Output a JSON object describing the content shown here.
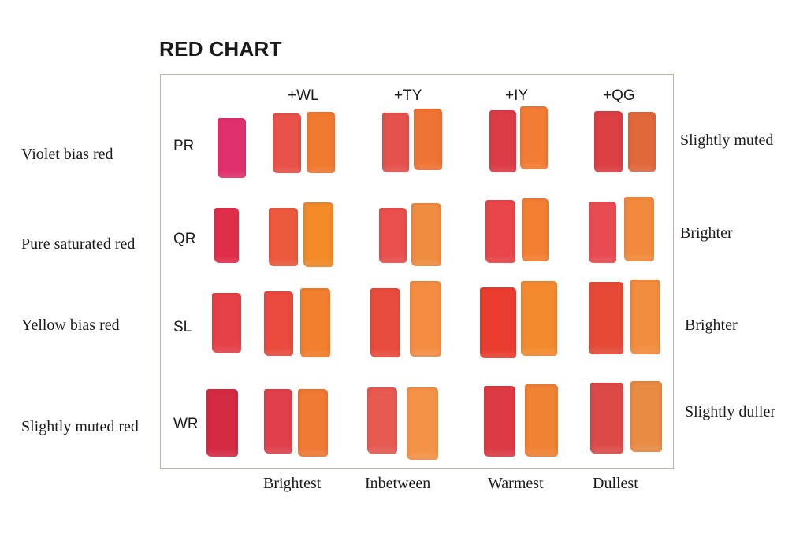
{
  "title": "RED CHART",
  "column_headers": [
    "+WL",
    "+TY",
    "+IY",
    "+QG"
  ],
  "bottom_labels": [
    "Brightest",
    "Inbetween",
    "Warmest",
    "Dullest"
  ],
  "rows": [
    {
      "description": "Violet bias red",
      "code": "PR",
      "note": "Slightly muted",
      "base_color": "#e0306e",
      "mixes": [
        [
          "#e8524a",
          "#f07a30"
        ],
        [
          "#e5524e",
          "#ee7435"
        ],
        [
          "#dc3c46",
          "#f27c34"
        ],
        [
          "#dc3f44",
          "#e0683a"
        ]
      ]
    },
    {
      "description": "Pure saturated red",
      "code": "QR",
      "note": "Brighter",
      "base_color": "#e02e4a",
      "mixes": [
        [
          "#ec5a3e",
          "#f28b28"
        ],
        [
          "#e9504e",
          "#f08c40"
        ],
        [
          "#e8464a",
          "#f27f32"
        ],
        [
          "#e84c52",
          "#f18a3c"
        ]
      ]
    },
    {
      "description": "Yellow bias red",
      "code": "SL",
      "note": "Brighter",
      "base_color": "#e64148",
      "mixes": [
        [
          "#ea4b3e",
          "#f27f2e"
        ],
        [
          "#e84c3e",
          "#f48d42"
        ],
        [
          "#ea3d30",
          "#f48a2e"
        ],
        [
          "#e64a36",
          "#f28c3e"
        ]
      ]
    },
    {
      "description": "Slightly muted red",
      "code": "WR",
      "note": "Slightly duller",
      "base_color": "#d42a42",
      "mixes": [
        [
          "#e0404c",
          "#f07a34"
        ],
        [
          "#e65a52",
          "#f49348"
        ],
        [
          "#dc3a44",
          "#f08234"
        ],
        [
          "#dc4a48",
          "#e88c44"
        ]
      ]
    }
  ]
}
